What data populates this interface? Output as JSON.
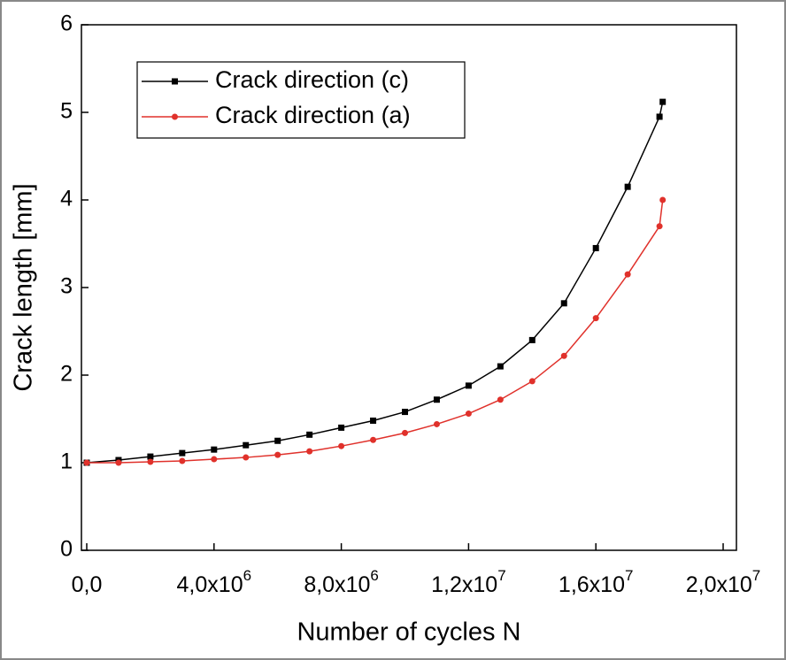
{
  "chart_data": {
    "type": "line",
    "xlabel": "Number of cycles  N",
    "ylabel": "Crack length  [mm]",
    "x": [
      0,
      1000000,
      2000000,
      3000000,
      4000000,
      5000000,
      6000000,
      7000000,
      8000000,
      9000000,
      10000000,
      11000000,
      12000000,
      13000000,
      14000000,
      15000000,
      16000000,
      17000000,
      18000000,
      18100000
    ],
    "series": [
      {
        "name": "Crack direction (c)",
        "color": "#000000",
        "marker": "square",
        "values": [
          1.0,
          1.03,
          1.07,
          1.11,
          1.15,
          1.2,
          1.25,
          1.32,
          1.4,
          1.48,
          1.58,
          1.72,
          1.88,
          2.1,
          2.4,
          2.82,
          3.45,
          4.15,
          4.95,
          5.12
        ]
      },
      {
        "name": "Crack direction (a)",
        "color": "#e0312b",
        "marker": "circle",
        "values": [
          1.0,
          1.0,
          1.01,
          1.02,
          1.04,
          1.06,
          1.09,
          1.13,
          1.19,
          1.26,
          1.34,
          1.44,
          1.56,
          1.72,
          1.93,
          2.22,
          2.65,
          3.15,
          3.7,
          4.0
        ]
      }
    ],
    "xlim": [
      0,
      20000000
    ],
    "ylim": [
      0,
      6
    ],
    "xticks": [
      {
        "value": 0,
        "label": "0,0"
      },
      {
        "value": 4000000,
        "label": "4,0x10",
        "sup": "6"
      },
      {
        "value": 8000000,
        "label": "8,0x10",
        "sup": "6"
      },
      {
        "value": 12000000,
        "label": "1,2x10",
        "sup": "7"
      },
      {
        "value": 16000000,
        "label": "1,6x10",
        "sup": "7"
      },
      {
        "value": 20000000,
        "label": "2,0x10",
        "sup": "7"
      }
    ],
    "yticks": [
      0,
      1,
      2,
      3,
      4,
      5,
      6
    ],
    "legend": "upper-left"
  }
}
